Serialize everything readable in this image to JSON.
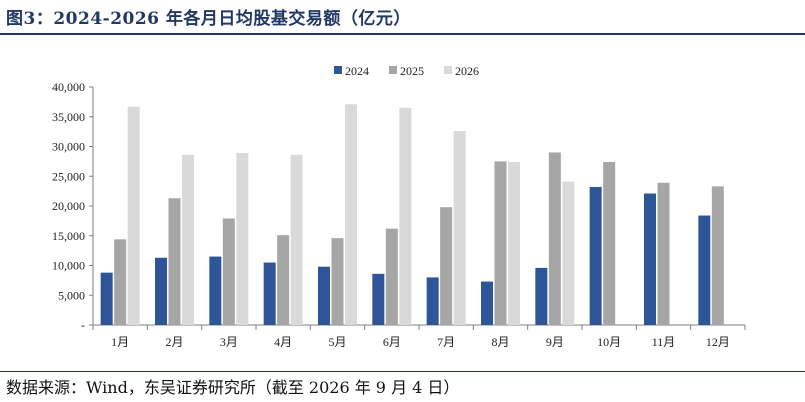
{
  "title": "图3：2024-2026 年各月日均股基交易额（亿元）",
  "source": "数据来源：Wind，东吴证券研究所（截至 2026 年 9 月 4 日）",
  "colors": {
    "series_2024": "#2e5597",
    "series_2025": "#a6a6a6",
    "series_2026": "#d9d9d9",
    "accent": "#1f3864"
  },
  "chart_data": {
    "type": "bar",
    "categories": [
      "1月",
      "2月",
      "3月",
      "4月",
      "5月",
      "6月",
      "7月",
      "8月",
      "9月",
      "10月",
      "11月",
      "12月"
    ],
    "series": [
      {
        "name": "2024",
        "values": [
          8800,
          11300,
          11500,
          10500,
          9800,
          8600,
          8000,
          7300,
          9600,
          23200,
          22100,
          18400
        ]
      },
      {
        "name": "2025",
        "values": [
          14400,
          21300,
          17900,
          15100,
          14600,
          16200,
          19800,
          27500,
          29000,
          27400,
          23900,
          23300
        ]
      },
      {
        "name": "2026",
        "values": [
          36700,
          28600,
          28900,
          28600,
          37100,
          36500,
          32600,
          27400,
          24100,
          null,
          null,
          null
        ]
      }
    ],
    "yticks": [
      "-",
      "5,000",
      "10,000",
      "15,000",
      "20,000",
      "25,000",
      "30,000",
      "35,000",
      "40,000"
    ],
    "ylim": [
      0,
      40000
    ],
    "legend_position": "top-center",
    "grid": false
  }
}
